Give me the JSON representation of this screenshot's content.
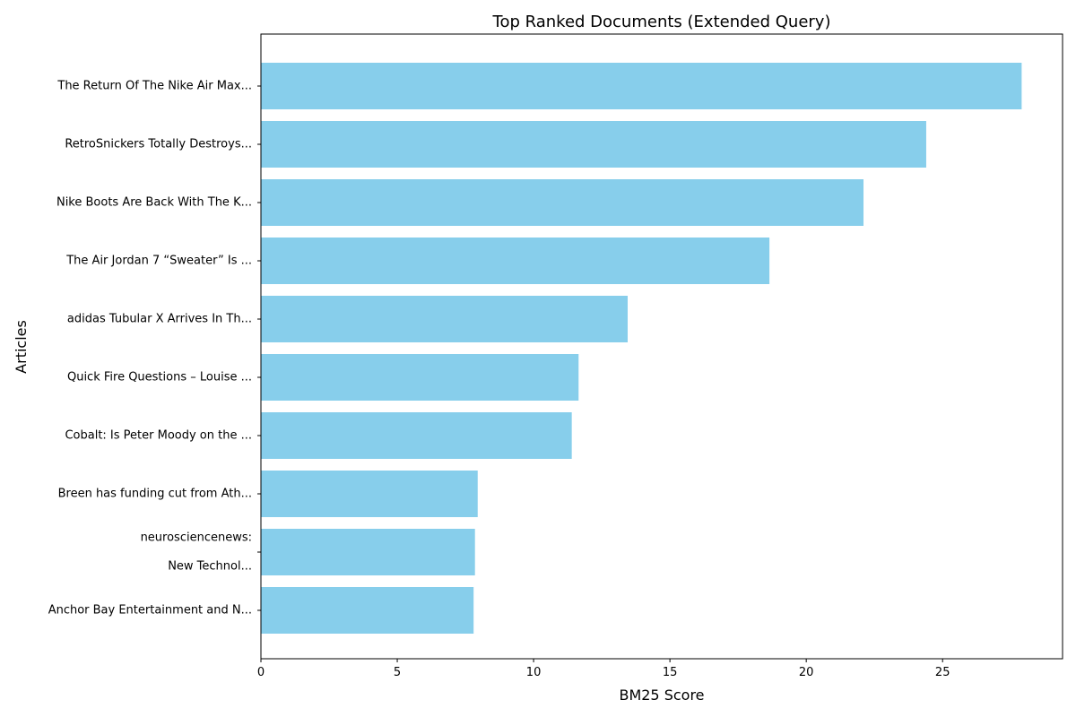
{
  "chart_data": {
    "type": "bar",
    "orientation": "horizontal",
    "title": "Top Ranked Documents (Extended Query)",
    "xlabel": "BM25 Score",
    "ylabel": "Articles",
    "categories": [
      [
        "The Return Of The Nike Air Max..."
      ],
      [
        "RetroSnickers Totally Destroys..."
      ],
      [
        "Nike Boots Are Back With The K..."
      ],
      [
        "The Air Jordan 7 “Sweater” Is ..."
      ],
      [
        "adidas Tubular X Arrives In Th..."
      ],
      [
        "Quick Fire Questions – Louise ..."
      ],
      [
        "Cobalt: Is Peter Moody on the ..."
      ],
      [
        "Breen has funding cut from Ath..."
      ],
      [
        "neurosciencenews:",
        "New Technol..."
      ],
      [
        "Anchor Bay Entertainment and N..."
      ]
    ],
    "values": [
      27.9,
      24.4,
      22.1,
      18.65,
      13.45,
      11.65,
      11.4,
      7.95,
      7.85,
      7.8
    ],
    "xlim": [
      0,
      29.4
    ],
    "xticks": [
      0,
      5,
      10,
      15,
      20,
      25
    ],
    "grid": false,
    "bar_color": "#87ceeb"
  }
}
